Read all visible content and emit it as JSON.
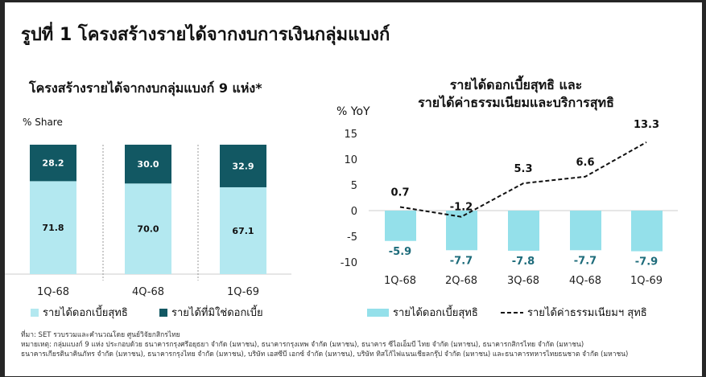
{
  "title": "รูปที่ 1 โครงสร้างรายได้จากงบการเงินกลุ่มแบงก์",
  "chart_data": [
    {
      "type": "bar",
      "stacked": true,
      "title": "โครงสร้างรายได้จากงบกลุ่มแบงก์ 9 แห่ง*",
      "ylabel": "% Share",
      "categories": [
        "1Q-68",
        "4Q-68",
        "1Q-69"
      ],
      "series": [
        {
          "name": "รายได้ดอกเบี้ยสุทธิ",
          "color": "#b3e8f0",
          "values": [
            71.8,
            70.0,
            67.1
          ],
          "labels": [
            "71.8",
            "70.0",
            "67.1"
          ]
        },
        {
          "name": "รายได้ที่มิใช่ดอกเบี้ย",
          "color": "#125863",
          "values": [
            28.2,
            30.0,
            32.9
          ],
          "labels": [
            "28.2",
            "30.0",
            "32.9"
          ]
        }
      ],
      "ylim": [
        0,
        100
      ],
      "legend": "bottom"
    },
    {
      "type": "bar+line",
      "title": "รายได้ดอกเบี้ยสุทธิ และ รายได้ค่าธรรมเนียมและบริการสุทธิ",
      "title_lines": [
        "รายได้ดอกเบี้ยสุทธิ และ",
        "รายได้ค่าธรรมเนียมและบริการสุทธิ"
      ],
      "ylabel": "% YoY",
      "categories": [
        "1Q-68",
        "2Q-68",
        "3Q-68",
        "4Q-68",
        "1Q-69"
      ],
      "yticks": [
        "15",
        "10",
        "5",
        "0",
        "-5",
        "-10"
      ],
      "ylim": [
        -10,
        15
      ],
      "series": [
        {
          "name": "รายได้ดอกเบี้ยสุทธิ",
          "kind": "bar",
          "color": "#94e0ea",
          "label_color": "#1d6b7a",
          "values": [
            -5.9,
            -7.7,
            -7.8,
            -7.7,
            -7.9
          ],
          "labels": [
            "-5.9",
            "-7.7",
            "-7.8",
            "-7.7",
            "-7.9"
          ]
        },
        {
          "name": "รายได้ค่าธรรมเนียมฯ สุทธิ",
          "kind": "dashed-line",
          "color": "#111111",
          "values": [
            0.7,
            -1.2,
            5.3,
            6.6,
            13.3
          ],
          "labels": [
            "0.7",
            "-1.2",
            "5.3",
            "6.6",
            "13.3"
          ]
        }
      ],
      "legend": "bottom"
    }
  ],
  "notes": {
    "source": "ที่มา: SET รวบรวมและคำนวณโดย ศูนย์วิจัยกสิกรไทย",
    "remark1": "หมายเหตุ: กลุ่มแบงก์ 9 แห่ง ประกอบด้วย ธนาคารกรุงศรีอยุธยา จำกัด (มหาชน), ธนาคารกรุงเทพ จำกัด (มหาชน), ธนาคาร ซีไอเอ็มบี ไทย จำกัด (มหาชน), ธนาคารกสิกรไทย จำกัด (มหาชน)",
    "remark2": "ธนาคารเกียรตินาคินภัทร จำกัด (มหาชน), ธนาคารกรุงไทย จำกัด (มหาชน), บริษัท เอสซีบี เอกซ์ จำกัด (มหาชน), บริษัท ทิสโก้ไฟแนนเชียลกรุ๊ป จำกัด (มหาชน) และธนาคารทหารไทยธนชาต จำกัด (มหาชน)"
  }
}
